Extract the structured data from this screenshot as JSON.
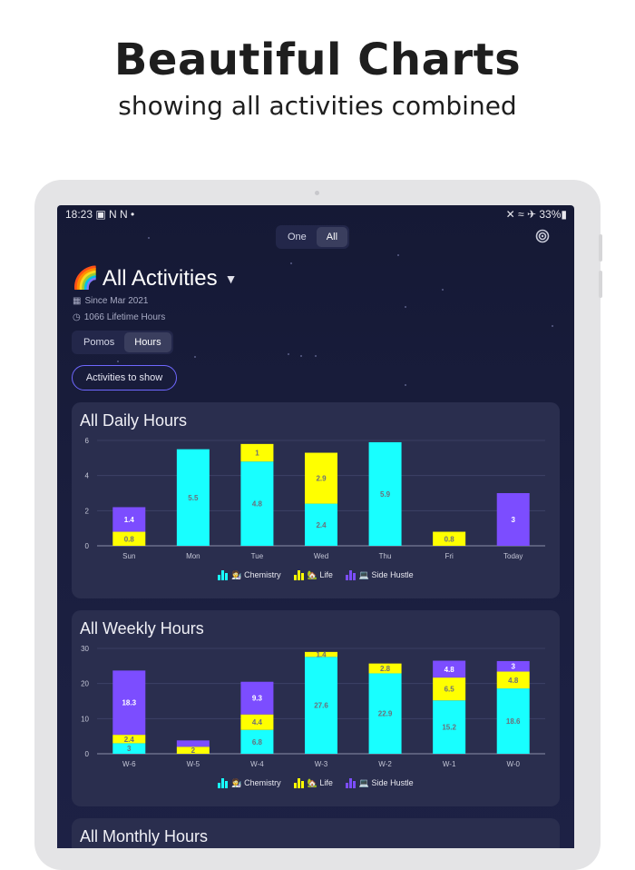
{
  "promo": {
    "headline": "Beautiful Charts",
    "subhead": "showing all activities combined"
  },
  "status_bar": {
    "time": "18:23",
    "left_icons": "▣ N N •",
    "right_icons": "✕ ≈ ✈ 33%▮"
  },
  "mode_toggle": {
    "options": [
      "One",
      "All"
    ],
    "selected": "All"
  },
  "header": {
    "emoji": "🌈",
    "title": "All Activities",
    "since": "Since Mar 2021",
    "lifetime": "1066 Lifetime Hours"
  },
  "unit_toggle": {
    "options": [
      "Pomos",
      "Hours"
    ],
    "selected": "Hours"
  },
  "activities_button": "Activities to show",
  "colors": {
    "chemistry": "#18ffff",
    "life": "#ffff00",
    "side_hustle": "#7c4dff"
  },
  "legend": [
    {
      "key": "chemistry",
      "label": "🧑‍🔬 Chemistry"
    },
    {
      "key": "life",
      "label": "🏡 Life"
    },
    {
      "key": "side_hustle",
      "label": "💻 Side Hustle"
    }
  ],
  "charts": {
    "daily_title": "All Daily Hours",
    "weekly_title": "All Weekly Hours",
    "monthly_title": "All Monthly Hours"
  },
  "chart_data": [
    {
      "type": "bar",
      "stacked": true,
      "title": "All Daily Hours",
      "categories": [
        "Sun",
        "Mon",
        "Tue",
        "Wed",
        "Thu",
        "Fri",
        "Today"
      ],
      "ylim": [
        0,
        6
      ],
      "yticks": [
        0,
        2,
        4,
        6
      ],
      "series": [
        {
          "name": "🧑‍🔬 Chemistry",
          "color": "#18ffff",
          "values": [
            0,
            5.5,
            4.8,
            2.4,
            5.9,
            0,
            0
          ],
          "labels": [
            "",
            "5.5",
            "4.8",
            "2.4",
            "5.9",
            "",
            ""
          ]
        },
        {
          "name": "🏡 Life",
          "color": "#ffff00",
          "values": [
            0.8,
            0,
            1,
            2.9,
            0,
            0.8,
            0
          ],
          "labels": [
            "0.8",
            "",
            "1",
            "2.9",
            "",
            "0.8",
            ""
          ]
        },
        {
          "name": "💻 Side Hustle",
          "color": "#7c4dff",
          "values": [
            1.4,
            0,
            0,
            0,
            0,
            0,
            3
          ],
          "labels": [
            "1.4",
            "",
            "",
            "",
            "",
            "",
            "3"
          ]
        }
      ]
    },
    {
      "type": "bar",
      "stacked": true,
      "title": "All Weekly Hours",
      "categories": [
        "W-6",
        "W-5",
        "W-4",
        "W-3",
        "W-2",
        "W-1",
        "W-0"
      ],
      "ylim": [
        0,
        30
      ],
      "yticks": [
        0,
        10,
        20,
        30
      ],
      "series": [
        {
          "name": "🧑‍🔬 Chemistry",
          "color": "#18ffff",
          "values": [
            3,
            0,
            6.8,
            27.6,
            22.9,
            15.2,
            18.6
          ],
          "labels": [
            "3",
            "",
            "6.8",
            "27.6",
            "22.9",
            "15.2",
            "18.6"
          ]
        },
        {
          "name": "🏡 Life",
          "color": "#ffff00",
          "values": [
            2.4,
            2,
            4.4,
            1.4,
            2.8,
            6.5,
            4.8
          ],
          "labels": [
            "2.4",
            "2",
            "4.4",
            "1.4",
            "2.8",
            "6.5",
            "4.8"
          ]
        },
        {
          "name": "💻 Side Hustle",
          "color": "#7c4dff",
          "values": [
            18.3,
            1.8,
            9.3,
            0,
            0,
            4.8,
            3
          ],
          "labels": [
            "18.3",
            "",
            "9.3",
            "",
            "",
            "4.8",
            "3"
          ]
        }
      ]
    }
  ]
}
